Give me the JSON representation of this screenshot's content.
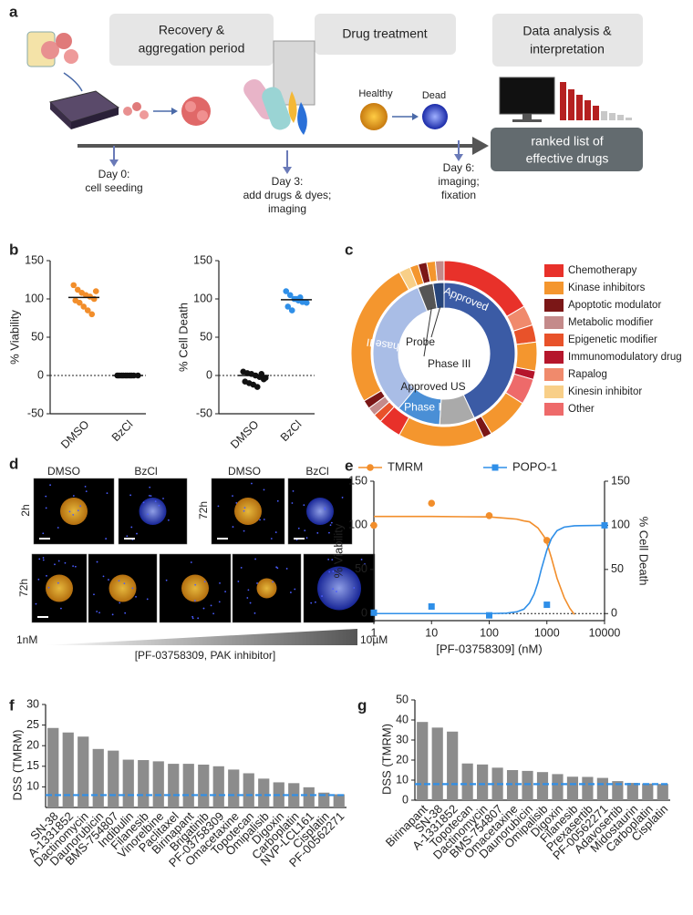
{
  "panel_a": {
    "label": "a",
    "phases": [
      [
        "Recovery &",
        "aggregation period"
      ],
      [
        "Drug treatment"
      ],
      [
        "Data analysis &",
        "interpretation"
      ]
    ],
    "days": [
      [
        "Day 0:",
        "cell  seeding"
      ],
      [
        "Day 3:",
        "add drugs & dyes;",
        "imaging"
      ],
      [
        "Day 6:",
        "imaging;",
        "fixation"
      ]
    ],
    "cell_states": [
      "Healthy",
      "Dead"
    ],
    "result": [
      "ranked list of",
      "effective drugs"
    ]
  },
  "panel_d": {
    "label": "d",
    "top_conditions": [
      "DMSO",
      "BzCl",
      "DMSO",
      "BzCl"
    ],
    "timepoints": [
      "2h",
      "72h",
      "72h"
    ],
    "gradient_start": "1nM",
    "gradient_end": "10µM",
    "gradient_label": "[PF-03758309, PAK inhibitor]"
  },
  "chart_data": [
    {
      "type": "scatter",
      "panel_label": "b",
      "ylabel": "% Viability",
      "categories": [
        "DMSO",
        "BzCl"
      ],
      "series": [
        {
          "color": "#f28e2b",
          "values": [
            118,
            112,
            108,
            105,
            103,
            100,
            98,
            95,
            90,
            85,
            80,
            110
          ]
        },
        {
          "color": "#111111",
          "values": [
            0,
            0,
            0,
            0,
            0,
            0,
            0,
            0,
            0,
            0
          ]
        }
      ],
      "medians": [
        102,
        0
      ],
      "reference_line": 0,
      "ylim": [
        -50,
        150
      ],
      "yticks": [
        -50,
        0,
        50,
        100,
        150
      ]
    },
    {
      "type": "scatter",
      "ylabel": "% Cell Death",
      "categories": [
        "DMSO",
        "BzCl"
      ],
      "series": [
        {
          "color": "#111111",
          "values": [
            5,
            3,
            2,
            0,
            -2,
            -5,
            -8,
            -10,
            -12,
            -15,
            2,
            -3
          ]
        },
        {
          "color": "#2f8fe8",
          "values": [
            110,
            105,
            100,
            98,
            96,
            95,
            90,
            85,
            100,
            102
          ]
        }
      ],
      "medians": [
        0,
        99
      ],
      "reference_line": 0,
      "ylim": [
        -50,
        150
      ],
      "yticks": [
        -50,
        0,
        50,
        100,
        150
      ]
    },
    {
      "type": "sunburst",
      "panel_label": "c",
      "inner": {
        "labels": [
          "Approved",
          "Approved US",
          "Phase I",
          "Phase II",
          "Phase III",
          "Probe"
        ],
        "values": [
          43,
          8,
          10,
          33,
          3.5,
          2.5
        ],
        "colors": [
          "#3b5ba5",
          "#aaaaaa",
          "#4a8fd6",
          "#a9bde6",
          "#555555",
          "#27457a"
        ]
      },
      "outer": {
        "classes": [
          0,
          6,
          4,
          1,
          5,
          8,
          1,
          2,
          1,
          0,
          4,
          3,
          2,
          1,
          7,
          1,
          2,
          1,
          3
        ],
        "values": [
          16.5,
          3.5,
          3,
          5,
          1.5,
          4.5,
          7.5,
          1.5,
          15,
          4,
          1.5,
          1.5,
          1.5,
          25.5,
          2,
          1.5,
          1.5,
          1.5,
          1.5
        ]
      },
      "legend": {
        "labels": [
          "Chemotherapy",
          "Kinase inhibitors",
          "Apoptotic modulator",
          "Metabolic modifier",
          "Epigenetic modifier",
          "Immunomodulatory drug",
          "Rapalog",
          "Kinesin inhibitor",
          "Other"
        ],
        "colors": [
          "#e8312a",
          "#f4962e",
          "#7b1717",
          "#c48a8a",
          "#e8522a",
          "#b5162c",
          "#f08a6c",
          "#f8cf88",
          "#ee6a6a"
        ]
      }
    },
    {
      "type": "dose_response",
      "panel_label": "e",
      "xlabel": "[PF-03758309] (nM)",
      "ylabel": "% Viability",
      "y2label": "% Cell Death",
      "log_x": true,
      "xlim": [
        1,
        10000
      ],
      "xticks": [
        1,
        10,
        100,
        1000,
        10000
      ],
      "ylim": [
        -8,
        150
      ],
      "yticks": [
        0,
        50,
        100,
        150
      ],
      "y2lim": [
        -8,
        150
      ],
      "y2ticks": [
        0,
        50,
        100,
        150
      ],
      "reference_line": 0,
      "series": [
        {
          "name": "TMRM",
          "color": "#f28e2b",
          "marker": "circle",
          "x": [
            1,
            10,
            100,
            1000
          ],
          "values": [
            100,
            125,
            111,
            83
          ],
          "fit_x": [
            1,
            10,
            100,
            200,
            300,
            400,
            500,
            700,
            900,
            1000,
            1200,
            1500,
            2000,
            2500,
            3000
          ],
          "fit": [
            110,
            110,
            109.5,
            108,
            107,
            105,
            104,
            97,
            87,
            80,
            63,
            40,
            18,
            6,
            -1
          ]
        },
        {
          "name": "POPO-1",
          "color": "#2f8fe8",
          "marker": "square",
          "axis": "y2",
          "x": [
            1,
            10,
            100,
            1000,
            10000
          ],
          "values": [
            1,
            8,
            -2,
            10,
            100
          ],
          "fit_x": [
            1,
            10,
            100,
            200,
            300,
            400,
            500,
            600,
            700,
            800,
            1000,
            1200,
            1500,
            2000,
            3000,
            10000
          ],
          "fit": [
            0,
            0,
            0,
            0.5,
            2,
            5,
            12,
            22,
            35,
            50,
            72,
            85,
            94,
            98,
            99.5,
            100
          ]
        }
      ]
    },
    {
      "type": "bar",
      "panel_label": "f",
      "ylabel": "DSS (TMRM)",
      "categories": [
        "SN-38",
        "A-1331852",
        "Dactinomycin",
        "Daunorubicin",
        "BMS-754807",
        "Indibulin",
        "Filanesib",
        "Vinorelbine",
        "Paclitaxel",
        "Birinapant",
        "Brigatinib",
        "PF-03758309",
        "Omacetaxine",
        "Topotecan",
        "Omipalisib",
        "Digoxin",
        "Carboplatin",
        "NVP-LCL161",
        "Cisplatin",
        "PF-00562271"
      ],
      "values": [
        24.3,
        23.2,
        22.2,
        19.2,
        18.8,
        16.6,
        16.5,
        16.2,
        15.6,
        15.6,
        15.4,
        15.0,
        14.2,
        13.3,
        12.0,
        11.1,
        10.9,
        9.9,
        8.6,
        8.2
      ],
      "color": "#8c8c8c",
      "threshold": 8,
      "threshold_color": "#2f8fe8",
      "ylim": [
        5,
        30
      ],
      "yticks": [
        10,
        15,
        20,
        25,
        30
      ]
    },
    {
      "type": "bar",
      "panel_label": "g",
      "ylabel": "DSS (TMRM)",
      "categories": [
        "Birinapant",
        "SN-38",
        "A-1331852",
        "Topotecan",
        "Dactinomycin",
        "BMS-754807",
        "Omacetaxine",
        "Daunorubicin",
        "Omipalisib",
        "Digoxin",
        "Filanesib",
        "Prexasertib",
        "PF-00562271",
        "Adavosertib",
        "Midostaurin",
        "Carboplatin",
        "Cisplatin"
      ],
      "values": [
        39,
        36.2,
        34.2,
        18.3,
        17.8,
        16.2,
        15,
        14.6,
        14,
        13,
        11.7,
        11.6,
        11.1,
        9.5,
        8.6,
        8.3,
        8.1
      ],
      "color": "#8c8c8c",
      "threshold": 8,
      "threshold_color": "#2f8fe8",
      "ylim": [
        0,
        50
      ],
      "yticks": [
        0,
        10,
        20,
        30,
        40,
        50
      ]
    }
  ]
}
